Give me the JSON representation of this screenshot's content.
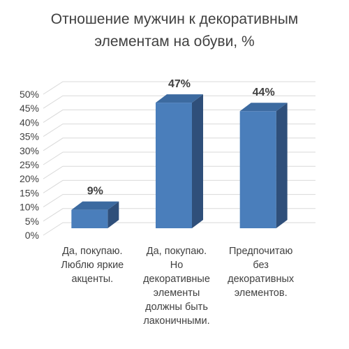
{
  "chart_data": {
    "type": "bar",
    "title_lines": [
      "Отношение мужчин к декоративным",
      "элементам на обуви, %"
    ],
    "categories": [
      [
        "Да, покупаю.",
        "Люблю яркие",
        "акценты."
      ],
      [
        "Да, покупаю.",
        "Но",
        "декоративные",
        "элементы",
        "должны быть",
        "лаконичными."
      ],
      [
        "Предпочитаю",
        "без",
        "декоративных",
        "элементов."
      ]
    ],
    "values": [
      9,
      47,
      44
    ],
    "data_labels": [
      "9%",
      "47%",
      "44%"
    ],
    "y_ticks": [
      "0%",
      "5%",
      "10%",
      "15%",
      "20%",
      "25%",
      "30%",
      "35%",
      "40%",
      "45%",
      "50%"
    ],
    "ylim": [
      0,
      50
    ],
    "grid": true,
    "three_d": true,
    "colors": {
      "bar_front": "#4a7ebb",
      "bar_side": "#2f4f7a",
      "bar_top": "#3c6aa0",
      "grid": "#d9d9d9",
      "text": "#404040"
    }
  }
}
